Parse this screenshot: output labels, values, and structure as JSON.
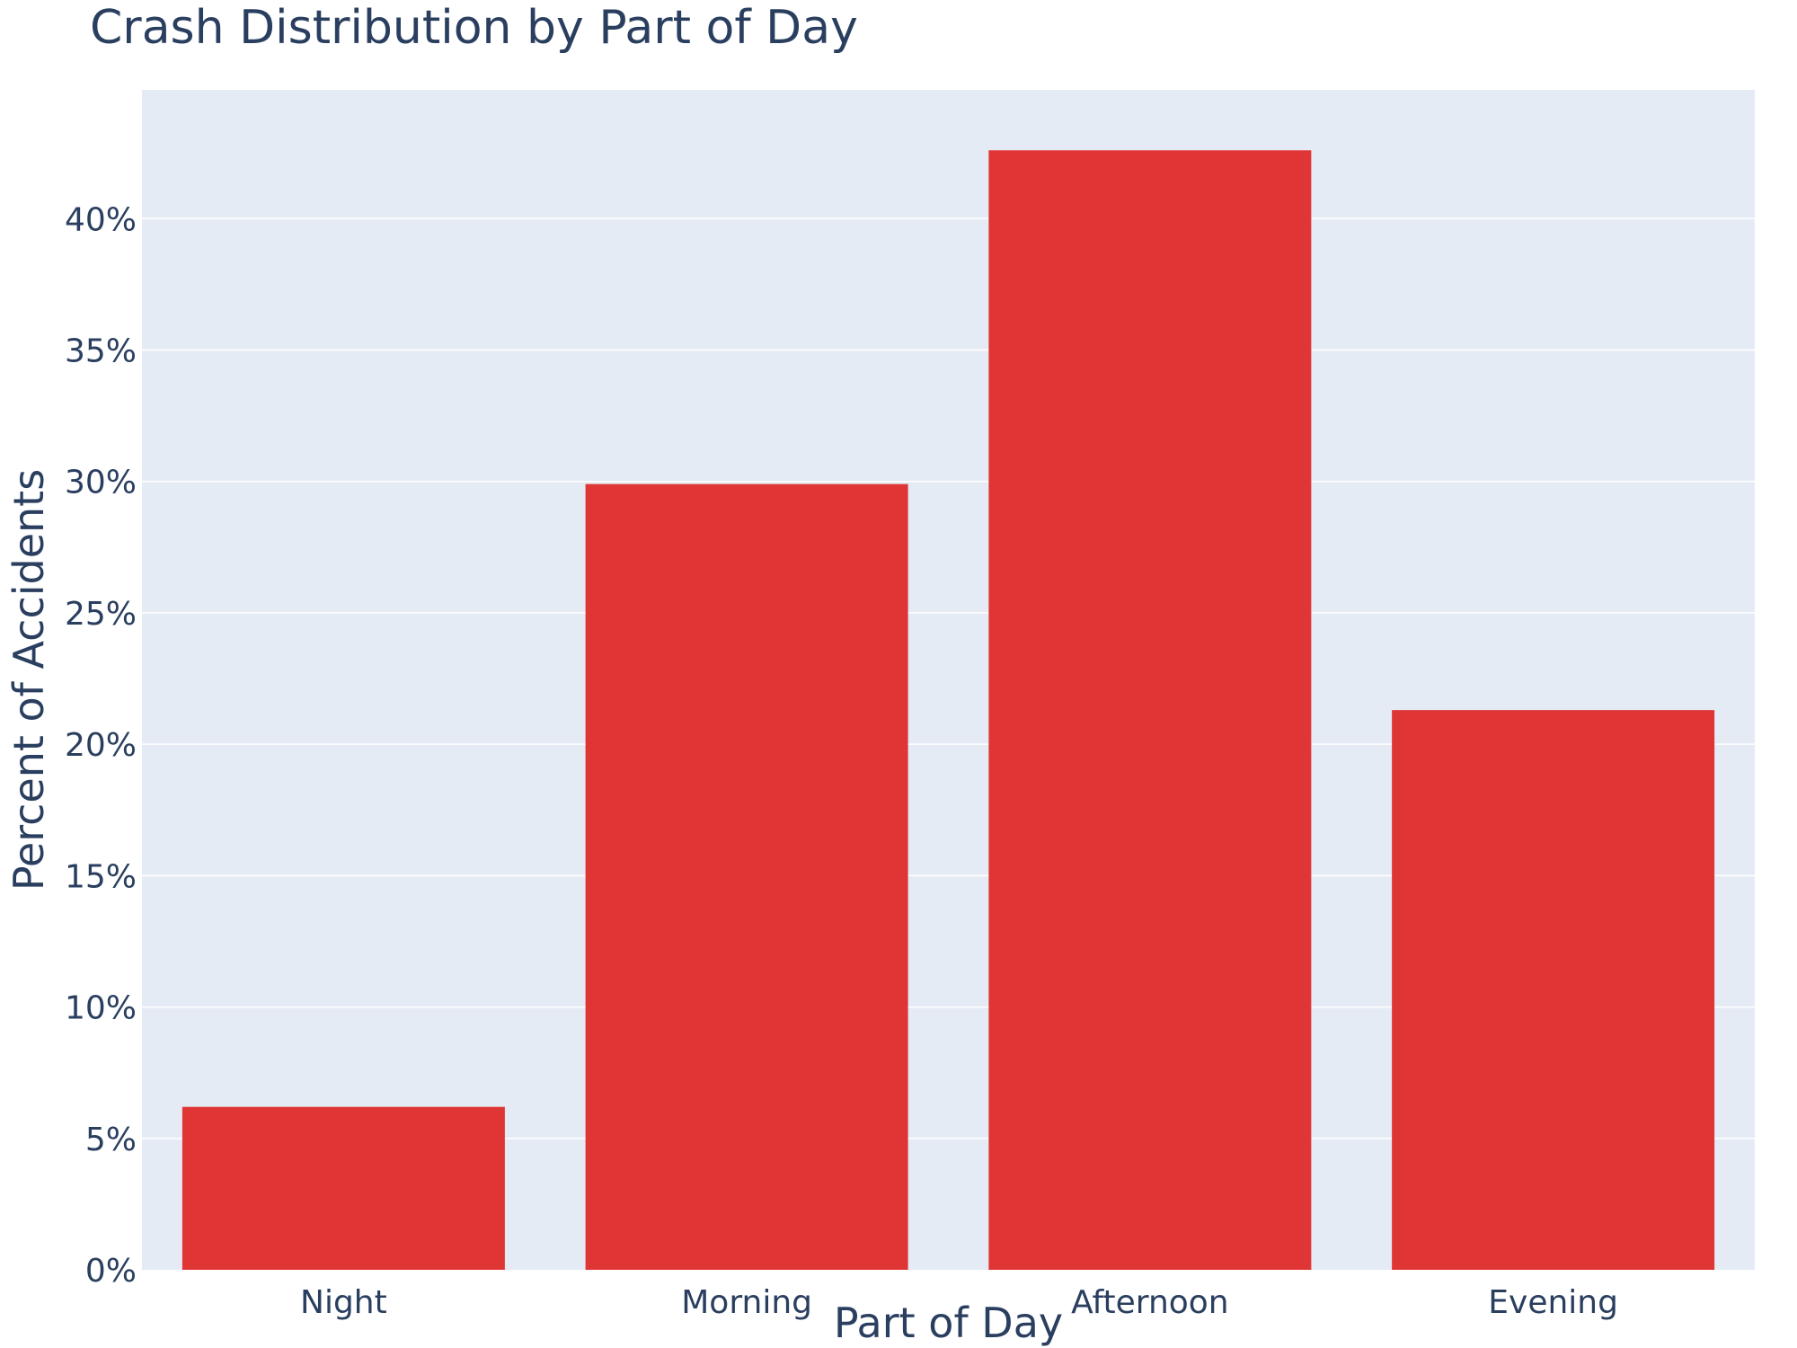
{
  "chart_data": {
    "type": "bar",
    "title": "Crash Distribution by Part of Day",
    "xlabel": "Part of Day",
    "ylabel": "Percent of Accidents",
    "categories": [
      "Night",
      "Morning",
      "Afternoon",
      "Evening"
    ],
    "values": [
      6.2,
      29.9,
      42.6,
      21.3
    ],
    "ylim": [
      0,
      44.9
    ],
    "yticks": [
      0,
      5,
      10,
      15,
      20,
      25,
      30,
      35,
      40
    ],
    "ytick_labels": [
      "0%",
      "5%",
      "10%",
      "15%",
      "20%",
      "25%",
      "30%",
      "35%",
      "40%"
    ],
    "grid": true,
    "bar_color": "#e03535",
    "plot_background": "#e5ebf5"
  }
}
